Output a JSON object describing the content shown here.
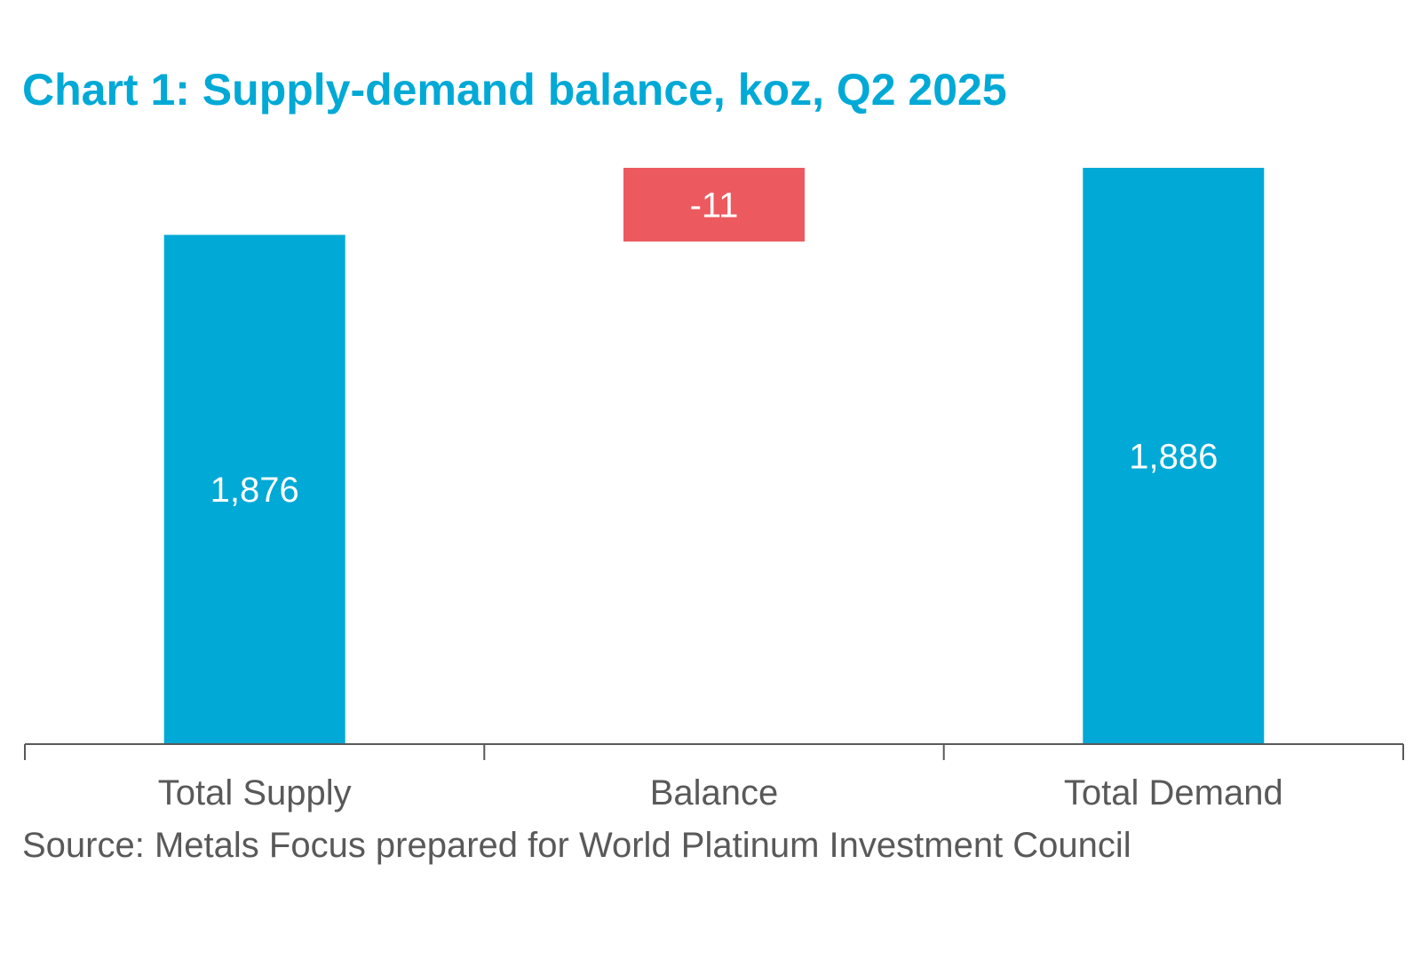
{
  "chart_data": {
    "type": "bar",
    "subtype": "waterfall",
    "title": "Chart 1: Supply-demand balance, koz, Q2 2025",
    "source": "Source: Metals Focus prepared for World Platinum Investment Council",
    "categories": [
      "Total Supply",
      "Balance",
      "Total Demand"
    ],
    "values": [
      1876,
      -11,
      1886
    ],
    "data_labels": [
      "1,876",
      "-11",
      "1,886"
    ],
    "bar_kinds": [
      "total",
      "delta",
      "total"
    ],
    "axis_min": 1800,
    "axis_max": 1886,
    "grid": false,
    "legend": "none",
    "colors": {
      "total": "#00a9d6",
      "negative": "#ec5a5f",
      "axis": "#595959",
      "title": "#00a9d6"
    }
  }
}
